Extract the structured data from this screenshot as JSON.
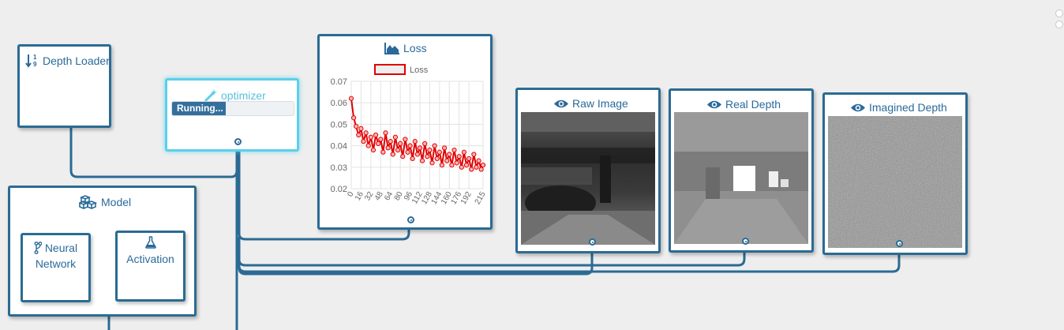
{
  "nodes": {
    "depth_loader": {
      "title": "Depth Loader",
      "icon": "sort-numeric-icon"
    },
    "optimizer": {
      "title": "optimizer",
      "icon": "magic-wand-icon",
      "status": "Running...",
      "progress": 0.44
    },
    "loss": {
      "title": "Loss",
      "icon": "area-chart-icon"
    },
    "model": {
      "title": "Model",
      "icon": "cubes-icon"
    },
    "neural_network": {
      "title_line1": "Neural",
      "title_line2": "Network",
      "icon": "code-fork-icon"
    },
    "activation": {
      "title": "Activation",
      "icon": "flask-icon"
    },
    "raw_image": {
      "title": "Raw Image",
      "icon": "eye-icon"
    },
    "real_depth": {
      "title": "Real Depth",
      "icon": "eye-icon"
    },
    "imagined_depth": {
      "title": "Imagined Depth",
      "icon": "eye-icon"
    }
  },
  "chart_data": {
    "type": "line",
    "legend": [
      {
        "name": "Loss",
        "color": "#e00000"
      }
    ],
    "legend_position": "top",
    "ylim": [
      0.02,
      0.07
    ],
    "yticks": [
      "0.07",
      "0.06",
      "0.05",
      "0.04",
      "0.03",
      "0.02"
    ],
    "xticks": [
      "0",
      "16",
      "32",
      "48",
      "64",
      "80",
      "96",
      "112",
      "128",
      "144",
      "160",
      "176",
      "192",
      "215"
    ],
    "xlim": [
      0,
      215
    ],
    "grid": true,
    "series": [
      {
        "name": "Loss",
        "color": "#e00000",
        "x": [
          0,
          4,
          8,
          12,
          16,
          20,
          24,
          28,
          32,
          36,
          40,
          44,
          48,
          52,
          56,
          60,
          64,
          68,
          72,
          76,
          80,
          84,
          88,
          92,
          96,
          100,
          104,
          108,
          112,
          116,
          120,
          124,
          128,
          132,
          136,
          140,
          144,
          148,
          152,
          156,
          160,
          164,
          168,
          172,
          176,
          180,
          184,
          188,
          192,
          196,
          200,
          204,
          208,
          212,
          215
        ],
        "y": [
          0.062,
          0.053,
          0.049,
          0.045,
          0.048,
          0.042,
          0.046,
          0.04,
          0.044,
          0.038,
          0.045,
          0.041,
          0.043,
          0.037,
          0.046,
          0.039,
          0.042,
          0.036,
          0.044,
          0.038,
          0.041,
          0.035,
          0.043,
          0.037,
          0.04,
          0.034,
          0.042,
          0.036,
          0.039,
          0.033,
          0.041,
          0.035,
          0.038,
          0.032,
          0.04,
          0.034,
          0.037,
          0.031,
          0.039,
          0.033,
          0.036,
          0.031,
          0.038,
          0.032,
          0.035,
          0.03,
          0.037,
          0.031,
          0.034,
          0.029,
          0.036,
          0.03,
          0.033,
          0.029,
          0.031
        ]
      }
    ]
  }
}
